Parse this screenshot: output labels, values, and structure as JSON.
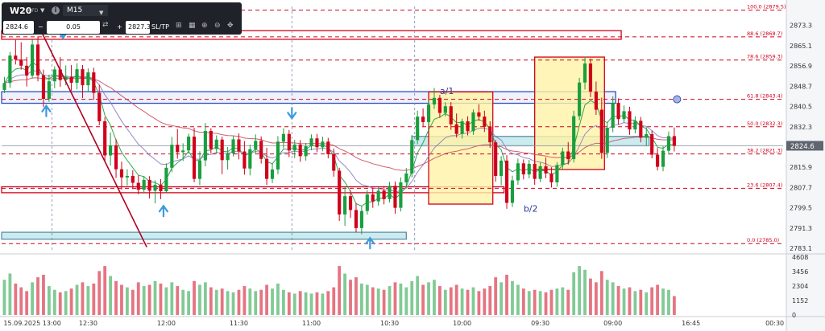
{
  "toolbar": {
    "symbol": "W20",
    "symbol_sub": "CFD",
    "timeframe": "M15",
    "sell_price": "2824.6",
    "lot": "0.05",
    "buy_price": "2827.3",
    "sltp_label": "SL/TP"
  },
  "colors": {
    "fib": "#d0021b",
    "blue_box": "#2b4fbf",
    "ema_fast": "#1a9e3e",
    "ema_mid": "#8e7cc3",
    "ema_slow": "#c94f5e",
    "cyan_zone": "#bfe6ea",
    "yellow_zone": "#fff3a6",
    "bull": "#1a9e3e",
    "bear": "#d0021b"
  },
  "chart_data": {
    "type": "candlestick",
    "symbol": "W20",
    "timeframe": "M15",
    "y_range": [
      2781.5,
      2881.0
    ],
    "price_ticks": [
      2873.3,
      2865.1,
      2856.9,
      2848.7,
      2840.5,
      2832.3,
      2824.1,
      2815.9,
      2807.7,
      2799.5,
      2791.3,
      2783.1
    ],
    "current_price_label": "2824.6",
    "current_price": 2824.6,
    "fib_levels": [
      {
        "label": "100.0 (2879.5)",
        "price": 2879.5
      },
      {
        "label": "88.6 (2868.7)",
        "price": 2868.7
      },
      {
        "label": "78.6 (2859.3)",
        "price": 2859.3
      },
      {
        "label": "61.8 (2843.4)",
        "price": 2843.4
      },
      {
        "label": "50.0 (2832.3)",
        "price": 2832.3
      },
      {
        "label": "38.2 (2821.3)",
        "price": 2821.3
      },
      {
        "label": "23.6 (2807.4)",
        "price": 2807.4
      },
      {
        "label": "0.0 (2785.0)",
        "price": 2785.0
      }
    ],
    "wave_labels": [
      {
        "text": "a/1",
        "index": 78,
        "price": 2845.5
      },
      {
        "text": "b/2",
        "index": 93,
        "price": 2798.0
      }
    ],
    "volume_ticks": [
      4608,
      3456,
      2304,
      1152,
      0
    ],
    "time_labels": [
      {
        "text": "15.09.2025 13:00",
        "index": 5
      },
      {
        "text": "12:30",
        "index": 15
      },
      {
        "text": "12:00",
        "index": 29
      },
      {
        "text": "11:30",
        "index": 42
      },
      {
        "text": "11:00",
        "index": 55
      },
      {
        "text": "10:30",
        "index": 69
      },
      {
        "text": "10:00",
        "index": 82
      },
      {
        "text": "09:30",
        "index": 96
      },
      {
        "text": "09:00",
        "index": 109
      },
      {
        "text": "16:45",
        "index": 123
      },
      {
        "text": "00:30",
        "index": 138
      }
    ],
    "candles": [
      [
        2847.2,
        2852.5,
        2845.9,
        2850.0,
        2800
      ],
      [
        2850.0,
        2862.6,
        2848.0,
        2861.1,
        3300
      ],
      [
        2861.1,
        2867.4,
        2857.5,
        2859.5,
        2500
      ],
      [
        2859.5,
        2866.5,
        2855.4,
        2857.0,
        2200
      ],
      [
        2857.0,
        2860.5,
        2848.6,
        2853.0,
        1900
      ],
      [
        2853.0,
        2867.5,
        2851.8,
        2865.6,
        2600
      ],
      [
        2865.6,
        2868.9,
        2850.7,
        2853.1,
        3000
      ],
      [
        2853.1,
        2855.4,
        2840.3,
        2843.6,
        3200
      ],
      [
        2843.6,
        2853.4,
        2842.4,
        2850.7,
        2300
      ],
      [
        2850.7,
        2856.8,
        2847.9,
        2855.5,
        2000
      ],
      [
        2855.5,
        2860.5,
        2848.5,
        2851.2,
        1800
      ],
      [
        2851.2,
        2857.1,
        2849.1,
        2852.5,
        1900
      ],
      [
        2852.5,
        2857.3,
        2846.9,
        2850.1,
        2100
      ],
      [
        2850.1,
        2858.0,
        2847.4,
        2855.6,
        2400
      ],
      [
        2855.6,
        2857.3,
        2843.9,
        2849.1,
        2600
      ],
      [
        2849.1,
        2855.9,
        2846.7,
        2854.3,
        2300
      ],
      [
        2854.3,
        2856.2,
        2843.2,
        2846.0,
        2500
      ],
      [
        2846.0,
        2849.3,
        2832.9,
        2834.5,
        3500
      ],
      [
        2834.5,
        2836.2,
        2818.2,
        2820.7,
        3900
      ],
      [
        2820.7,
        2830.0,
        2816.6,
        2824.8,
        3100
      ],
      [
        2824.8,
        2827.3,
        2811.6,
        2815.1,
        2700
      ],
      [
        2815.1,
        2818.2,
        2806.9,
        2811.8,
        2400
      ],
      [
        2811.8,
        2815.1,
        2808.5,
        2812.4,
        2200
      ],
      [
        2812.4,
        2814.7,
        2807.1,
        2809.6,
        2000
      ],
      [
        2809.6,
        2812.6,
        2805.0,
        2806.8,
        2600
      ],
      [
        2806.8,
        2812.4,
        2805.3,
        2810.8,
        2300
      ],
      [
        2810.8,
        2812.3,
        2803.3,
        2806.4,
        2400
      ],
      [
        2806.4,
        2810.6,
        2801.3,
        2808.8,
        2700
      ],
      [
        2808.8,
        2811.1,
        2803.0,
        2806.2,
        2500
      ],
      [
        2806.2,
        2817.5,
        2805.7,
        2815.7,
        2200
      ],
      [
        2815.7,
        2828.2,
        2813.9,
        2825.0,
        2600
      ],
      [
        2825.0,
        2831.4,
        2819.4,
        2822.0,
        2300
      ],
      [
        2822.0,
        2825.6,
        2818.4,
        2822.7,
        2000
      ],
      [
        2822.7,
        2829.5,
        2821.4,
        2828.3,
        1900
      ],
      [
        2828.3,
        2831.9,
        2809.8,
        2811.2,
        2700
      ],
      [
        2811.2,
        2822.4,
        2808.7,
        2818.7,
        2400
      ],
      [
        2818.7,
        2833.8,
        2816.3,
        2830.6,
        2600
      ],
      [
        2830.6,
        2831.7,
        2821.5,
        2823.3,
        2200
      ],
      [
        2823.3,
        2828.8,
        2821.2,
        2827.1,
        2000
      ],
      [
        2827.1,
        2828.3,
        2813.1,
        2818.8,
        2100
      ],
      [
        2818.8,
        2824.1,
        2815.0,
        2821.5,
        1900
      ],
      [
        2821.5,
        2828.5,
        2820.3,
        2827.2,
        1800
      ],
      [
        2827.2,
        2829.6,
        2819.1,
        2822.3,
        2000
      ],
      [
        2822.3,
        2826.5,
        2812.9,
        2815.4,
        2300
      ],
      [
        2815.4,
        2825.1,
        2812.6,
        2823.2,
        2100
      ],
      [
        2823.2,
        2829.2,
        2821.1,
        2826.6,
        1900
      ],
      [
        2826.6,
        2828.4,
        2817.4,
        2819.3,
        2000
      ],
      [
        2819.3,
        2823.8,
        2808.8,
        2811.2,
        2400
      ],
      [
        2811.2,
        2817.4,
        2809.5,
        2815.0,
        2100
      ],
      [
        2815.0,
        2828.5,
        2813.1,
        2826.3,
        2500
      ],
      [
        2826.3,
        2831.7,
        2823.6,
        2829.4,
        2000
      ],
      [
        2829.4,
        2831.0,
        2820.0,
        2822.7,
        1800
      ],
      [
        2822.7,
        2827.0,
        2819.6,
        2825.1,
        1700
      ],
      [
        2825.1,
        2826.9,
        2818.1,
        2820.4,
        1900
      ],
      [
        2820.4,
        2825.7,
        2818.6,
        2824.4,
        1800
      ],
      [
        2824.4,
        2829.2,
        2822.8,
        2827.6,
        1700
      ],
      [
        2827.6,
        2829.4,
        2822.0,
        2824.0,
        1800
      ],
      [
        2824.0,
        2828.3,
        2822.4,
        2826.3,
        1700
      ],
      [
        2826.3,
        2827.8,
        2819.5,
        2821.2,
        1900
      ],
      [
        2821.2,
        2823.5,
        2812.1,
        2814.5,
        2200
      ],
      [
        2814.5,
        2815.7,
        2794.2,
        2796.8,
        3900
      ],
      [
        2796.8,
        2807.8,
        2792.2,
        2804.2,
        3300
      ],
      [
        2804.2,
        2806.5,
        2795.4,
        2798.6,
        2800
      ],
      [
        2798.6,
        2801.4,
        2789.6,
        2791.3,
        3000
      ],
      [
        2791.3,
        2800.1,
        2788.8,
        2798.2,
        2500
      ],
      [
        2798.2,
        2806.6,
        2796.7,
        2804.9,
        2400
      ],
      [
        2804.9,
        2807.7,
        2799.5,
        2802.1,
        2200
      ],
      [
        2802.1,
        2807.9,
        2800.3,
        2806.4,
        2100
      ],
      [
        2806.4,
        2808.3,
        2800.9,
        2803.0,
        2000
      ],
      [
        2803.0,
        2810.0,
        2801.7,
        2808.4,
        2300
      ],
      [
        2808.4,
        2810.2,
        2797.1,
        2799.5,
        2600
      ],
      [
        2799.5,
        2811.8,
        2798.0,
        2809.8,
        2500
      ],
      [
        2809.8,
        2815.6,
        2808.2,
        2813.4,
        2200
      ],
      [
        2813.4,
        2829.0,
        2811.8,
        2826.9,
        2700
      ],
      [
        2826.9,
        2838.8,
        2825.3,
        2836.4,
        3100
      ],
      [
        2836.4,
        2839.7,
        2832.2,
        2834.2,
        2400
      ],
      [
        2834.2,
        2843.1,
        2832.6,
        2841.3,
        2600
      ],
      [
        2841.3,
        2848.0,
        2839.5,
        2844.0,
        2800
      ],
      [
        2844.0,
        2845.2,
        2835.9,
        2837.9,
        2300
      ],
      [
        2837.9,
        2842.2,
        2836.4,
        2840.6,
        2000
      ],
      [
        2840.6,
        2842.3,
        2831.1,
        2833.3,
        2200
      ],
      [
        2833.3,
        2837.7,
        2827.9,
        2829.4,
        2400
      ],
      [
        2829.4,
        2835.6,
        2827.5,
        2834.5,
        2100
      ],
      [
        2834.5,
        2836.5,
        2828.8,
        2830.5,
        2000
      ],
      [
        2830.5,
        2839.3,
        2829.0,
        2838.1,
        2200
      ],
      [
        2838.1,
        2841.4,
        2834.7,
        2836.4,
        1900
      ],
      [
        2836.4,
        2838.8,
        2830.2,
        2832.3,
        2100
      ],
      [
        2832.3,
        2834.5,
        2823.8,
        2826.0,
        2300
      ],
      [
        2826.0,
        2827.0,
        2810.1,
        2812.4,
        3000
      ],
      [
        2812.4,
        2820.4,
        2808.6,
        2818.6,
        2600
      ],
      [
        2818.6,
        2820.8,
        2799.1,
        2801.5,
        3200
      ],
      [
        2801.5,
        2812.5,
        2799.8,
        2810.6,
        2700
      ],
      [
        2810.6,
        2819.4,
        2808.8,
        2817.5,
        2400
      ],
      [
        2817.5,
        2819.1,
        2811.0,
        2813.0,
        2100
      ],
      [
        2813.0,
        2818.9,
        2811.4,
        2817.3,
        1900
      ],
      [
        2817.3,
        2818.5,
        2808.8,
        2811.2,
        2000
      ],
      [
        2811.2,
        2817.8,
        2809.9,
        2816.3,
        1900
      ],
      [
        2816.3,
        2819.9,
        2811.5,
        2813.4,
        1800
      ],
      [
        2813.4,
        2815.9,
        2807.7,
        2809.8,
        2000
      ],
      [
        2809.8,
        2818.0,
        2808.0,
        2816.8,
        2100
      ],
      [
        2816.8,
        2823.8,
        2815.0,
        2822.3,
        2200
      ],
      [
        2822.3,
        2826.1,
        2817.0,
        2819.2,
        2000
      ],
      [
        2819.2,
        2838.8,
        2817.8,
        2836.6,
        3400
      ],
      [
        2836.6,
        2852.1,
        2834.9,
        2850.2,
        3900
      ],
      [
        2850.2,
        2860.6,
        2847.4,
        2857.9,
        3600
      ],
      [
        2857.9,
        2859.9,
        2844.3,
        2846.5,
        2900
      ],
      [
        2846.5,
        2850.6,
        2837.1,
        2839.2,
        2600
      ],
      [
        2839.2,
        2844.1,
        2819.3,
        2821.7,
        3500
      ],
      [
        2821.7,
        2834.1,
        2819.7,
        2831.9,
        2800
      ],
      [
        2831.9,
        2844.6,
        2830.1,
        2842.0,
        2600
      ],
      [
        2842.0,
        2843.8,
        2833.1,
        2835.4,
        2300
      ],
      [
        2835.4,
        2840.9,
        2833.9,
        2838.6,
        2100
      ],
      [
        2838.6,
        2840.4,
        2829.0,
        2831.2,
        2200
      ],
      [
        2831.2,
        2836.5,
        2829.6,
        2834.7,
        1900
      ],
      [
        2834.7,
        2836.3,
        2826.0,
        2827.9,
        2000
      ],
      [
        2827.9,
        2832.1,
        2824.6,
        2829.3,
        1800
      ],
      [
        2829.3,
        2830.7,
        2819.5,
        2821.0,
        2200
      ],
      [
        2821.0,
        2823.7,
        2814.6,
        2816.1,
        2400
      ],
      [
        2816.1,
        2824.4,
        2814.3,
        2822.6,
        2100
      ],
      [
        2822.6,
        2830.4,
        2821.0,
        2828.5,
        2000
      ],
      [
        2828.5,
        2832.0,
        2822.3,
        2824.6,
        1500
      ]
    ]
  }
}
